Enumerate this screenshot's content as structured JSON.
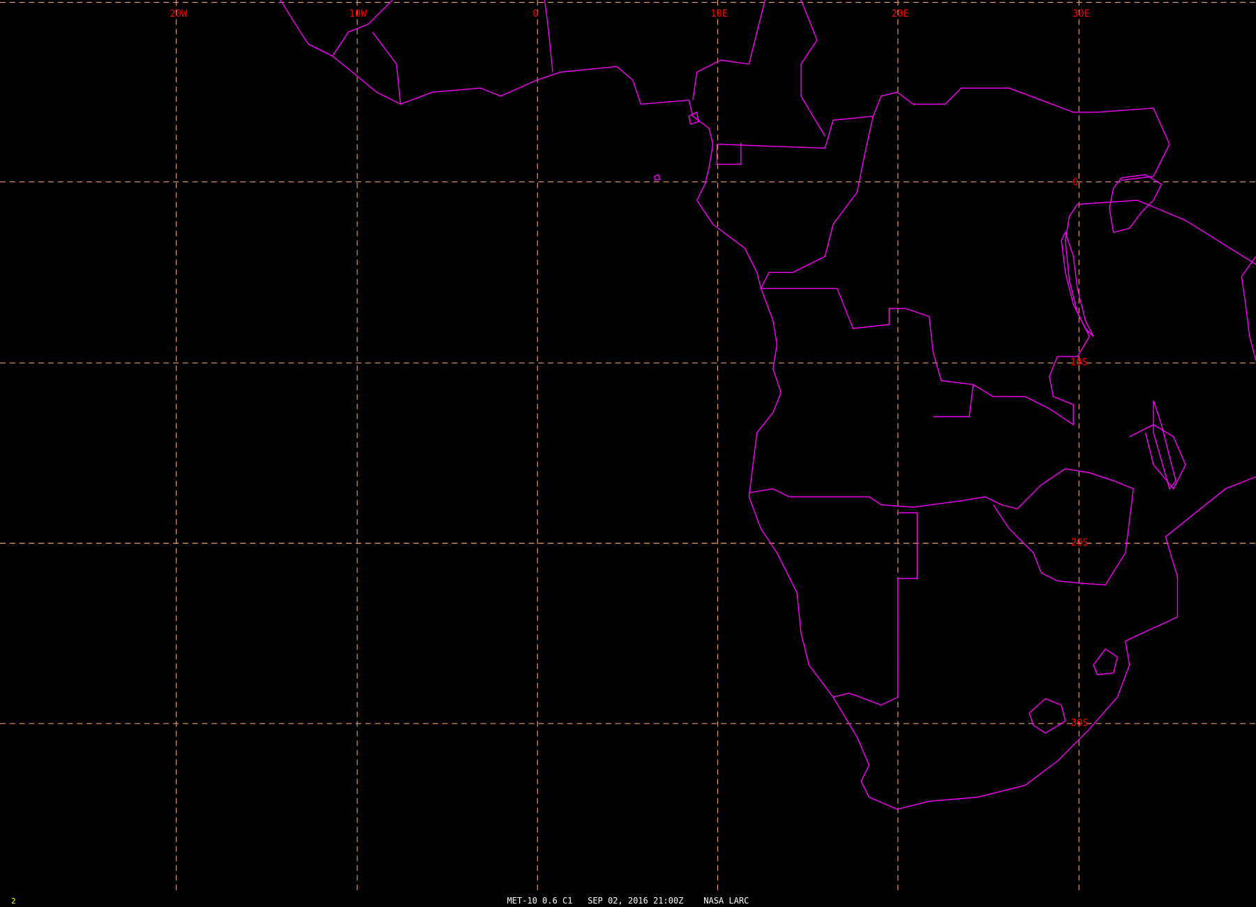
{
  "map": {
    "lon_labels": [
      "20W",
      "10W",
      "0",
      "10E",
      "20E",
      "30E"
    ],
    "lat_labels": [
      "0",
      "10S",
      "20S",
      "30S"
    ],
    "colors": {
      "background": "#000000",
      "coastline": "#ff00ff",
      "grid": "#e8a070",
      "grid_labels": "#ff0000",
      "footer_text": "#ffffff",
      "frame_number": "#ffff00"
    }
  },
  "footer": {
    "satellite": "MET-10 0.6 C1",
    "datetime": "SEP 02, 2016 21:00Z",
    "source": "NASA LARC",
    "frame_number": "2"
  }
}
